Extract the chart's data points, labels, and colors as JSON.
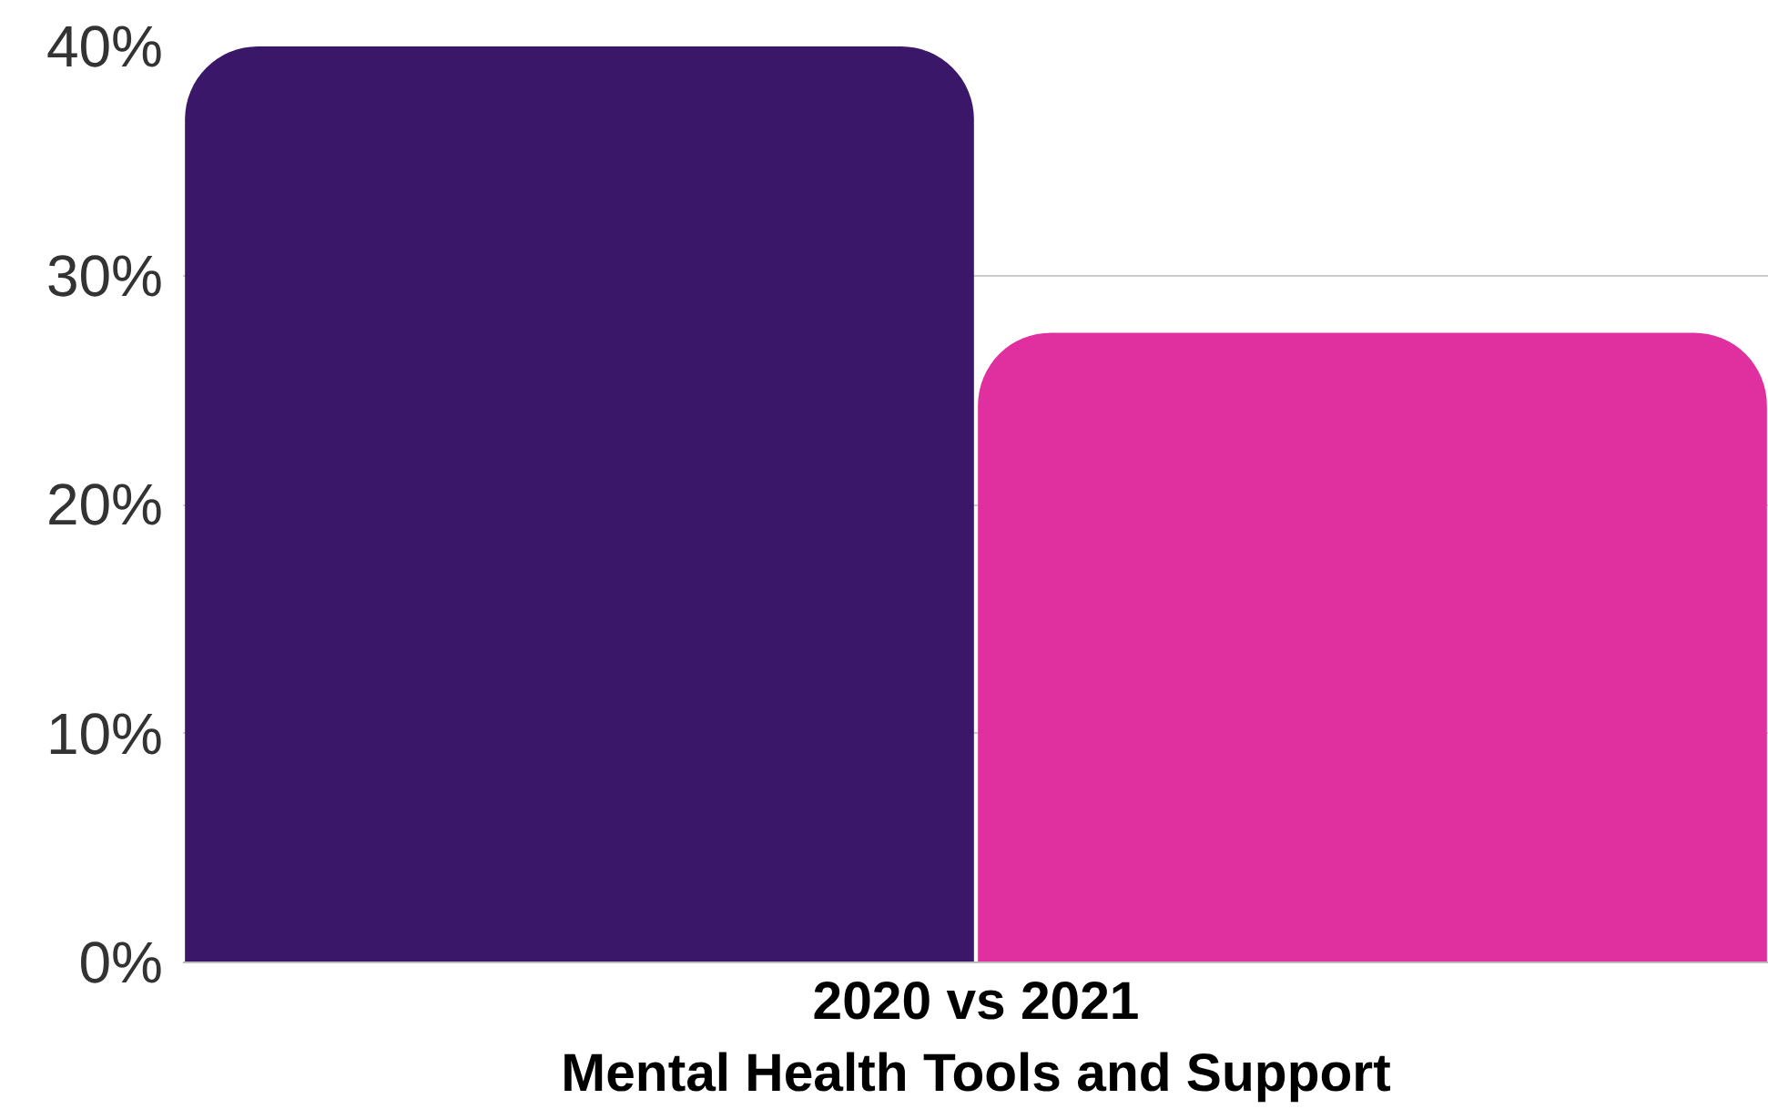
{
  "chart_data": {
    "type": "bar",
    "xlabel": "2020 vs 2021\nMental Health Tools and Support",
    "categories": [
      null,
      null
    ],
    "values": [
      40,
      27.5
    ],
    "colors": [
      "#3a1769",
      "#e02f9f"
    ],
    "ylim": [
      0,
      40
    ],
    "yticks": [
      {
        "value": 0,
        "label": "0%"
      },
      {
        "value": 10,
        "label": "10%"
      },
      {
        "value": 20,
        "label": "20%"
      },
      {
        "value": 30,
        "label": "30%"
      },
      {
        "value": 40,
        "label": "40%"
      }
    ],
    "grid": "y"
  }
}
